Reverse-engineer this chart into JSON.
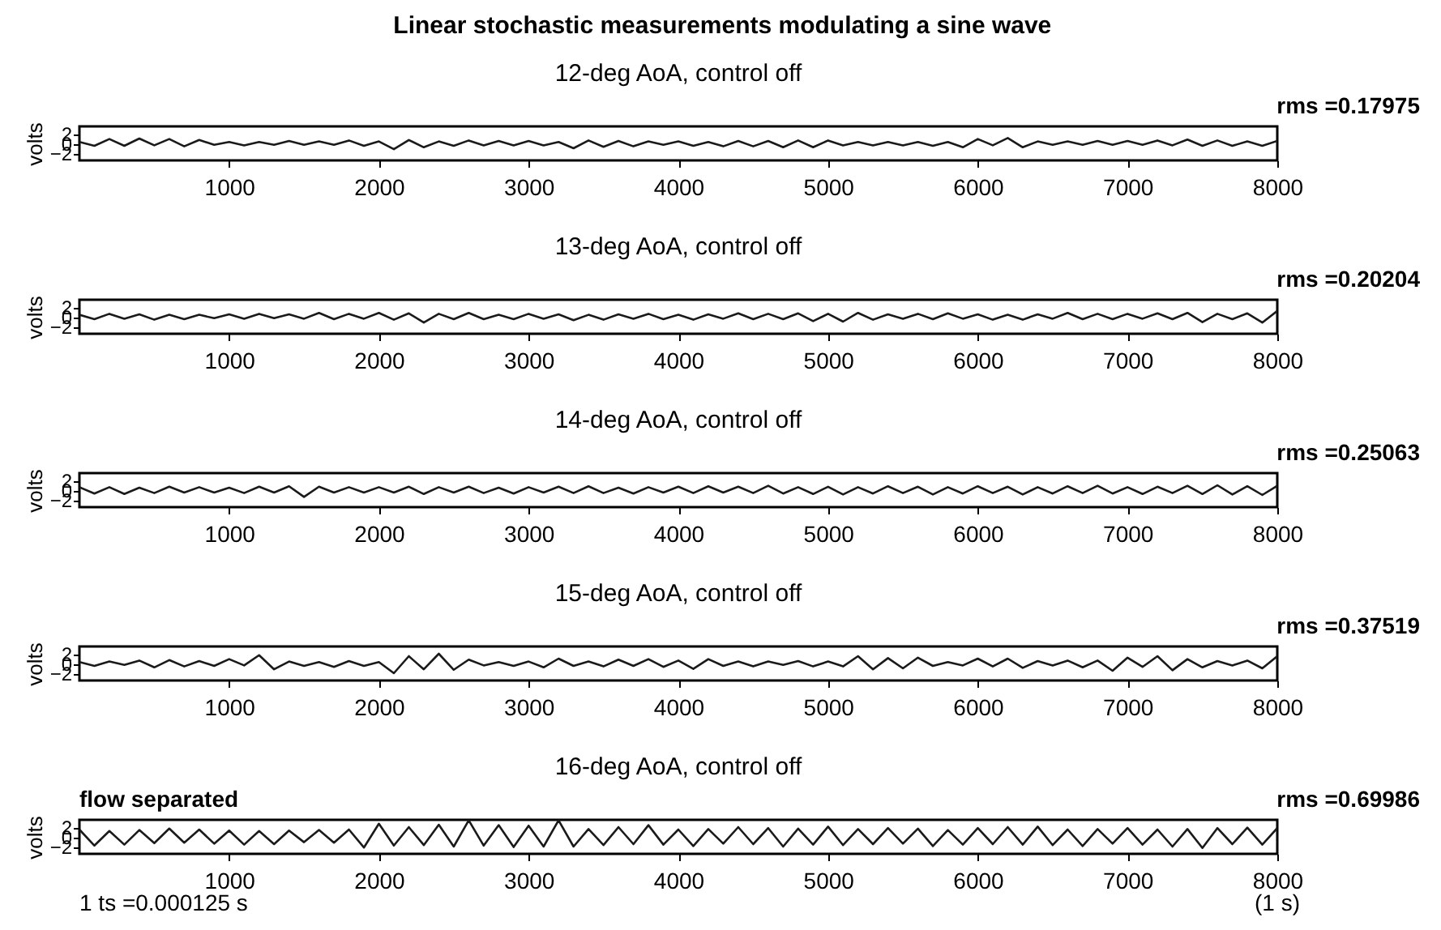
{
  "chart_data": [
    {
      "type": "line",
      "title": "Linear stochastic measurements modulating a sine wave",
      "subtitle": "12-deg AoA, control off",
      "ylabel": "volts",
      "annotations": [
        "rms =0.17975"
      ],
      "xlim": [
        0,
        8000
      ],
      "ylim": [
        -3.5,
        3.5
      ],
      "xticks": [
        1000,
        2000,
        3000,
        4000,
        5000,
        6000,
        7000,
        8000
      ],
      "yticks": [
        -2,
        0,
        2
      ],
      "grid": false,
      "x": [
        0,
        100,
        200,
        300,
        400,
        500,
        600,
        700,
        800,
        900,
        1000,
        1100,
        1200,
        1300,
        1400,
        1500,
        1600,
        1700,
        1800,
        1900,
        2000,
        2100,
        2200,
        2300,
        2400,
        2500,
        2600,
        2700,
        2800,
        2900,
        3000,
        3100,
        3200,
        3300,
        3400,
        3500,
        3600,
        3700,
        3800,
        3900,
        4000,
        4100,
        4200,
        4300,
        4400,
        4500,
        4600,
        4700,
        4800,
        4900,
        5000,
        5100,
        5200,
        5300,
        5400,
        5500,
        5600,
        5700,
        5800,
        5900,
        6000,
        6100,
        6200,
        6300,
        6400,
        6500,
        6600,
        6700,
        6800,
        6900,
        7000,
        7100,
        7200,
        7300,
        7400,
        7500,
        7600,
        7700,
        7800,
        7900,
        8000
      ],
      "series": [
        {
          "color": "#1a1a1a",
          "values": [
            0.3,
            -0.5,
            0.9,
            -0.5,
            1.0,
            -0.4,
            0.9,
            -0.6,
            0.7,
            -0.3,
            0.3,
            -0.4,
            0.3,
            -0.3,
            0.5,
            -0.3,
            0.4,
            -0.3,
            0.6,
            -0.5,
            0.4,
            -1.2,
            0.7,
            -0.8,
            0.4,
            -0.5,
            0.6,
            -0.4,
            0.5,
            -0.4,
            0.5,
            -0.4,
            0.3,
            -1.0,
            0.6,
            -0.7,
            0.5,
            -0.6,
            0.4,
            -0.3,
            0.4,
            -0.5,
            0.3,
            -0.6,
            0.5,
            -0.6,
            0.5,
            -0.8,
            0.6,
            -0.8,
            0.6,
            -0.4,
            0.3,
            -0.4,
            0.3,
            -0.4,
            0.3,
            -0.5,
            0.3,
            -0.8,
            0.9,
            -0.4,
            1.1,
            -0.8,
            0.4,
            -0.3,
            0.4,
            -0.3,
            0.5,
            -0.3,
            0.5,
            -0.3,
            0.6,
            -0.4,
            0.8,
            -0.5,
            0.6,
            -0.5,
            0.4,
            -0.5,
            0.5
          ]
        }
      ]
    },
    {
      "type": "line",
      "subtitle": "13-deg AoA, control off",
      "ylabel": "volts",
      "annotations": [
        "rms =0.20204"
      ],
      "xlim": [
        0,
        8000
      ],
      "ylim": [
        -3.5,
        3.5
      ],
      "xticks": [
        1000,
        2000,
        3000,
        4000,
        5000,
        6000,
        7000,
        8000
      ],
      "yticks": [
        -2,
        0,
        2
      ],
      "grid": false,
      "x": [
        0,
        100,
        200,
        300,
        400,
        500,
        600,
        700,
        800,
        900,
        1000,
        1100,
        1200,
        1300,
        1400,
        1500,
        1600,
        1700,
        1800,
        1900,
        2000,
        2100,
        2200,
        2300,
        2400,
        2500,
        2600,
        2700,
        2800,
        2900,
        3000,
        3100,
        3200,
        3300,
        3400,
        3500,
        3600,
        3700,
        3800,
        3900,
        4000,
        4100,
        4200,
        4300,
        4400,
        4500,
        4600,
        4700,
        4800,
        4900,
        5000,
        5100,
        5200,
        5300,
        5400,
        5500,
        5600,
        5700,
        5800,
        5900,
        6000,
        6100,
        6200,
        6300,
        6400,
        6500,
        6600,
        6700,
        6800,
        6900,
        7000,
        7100,
        7200,
        7300,
        7400,
        7500,
        7600,
        7700,
        7800,
        7900,
        8000
      ],
      "series": [
        {
          "color": "#1a1a1a",
          "values": [
            0.4,
            -0.5,
            0.6,
            -0.4,
            0.5,
            -0.6,
            0.4,
            -0.5,
            0.4,
            -0.3,
            0.5,
            -0.4,
            0.6,
            -0.3,
            0.5,
            -0.4,
            0.8,
            -0.5,
            0.6,
            -0.4,
            0.8,
            -0.6,
            0.7,
            -1.2,
            0.6,
            -0.5,
            0.8,
            -0.5,
            0.4,
            -0.5,
            0.6,
            -0.4,
            0.5,
            -0.7,
            0.4,
            -0.6,
            0.5,
            -0.4,
            0.6,
            -0.5,
            0.4,
            -0.6,
            0.5,
            -0.4,
            0.7,
            -0.5,
            0.6,
            -0.5,
            0.7,
            -0.9,
            0.6,
            -1.0,
            0.8,
            -0.6,
            0.5,
            -0.4,
            0.6,
            -0.5,
            0.7,
            -0.4,
            0.5,
            -0.6,
            0.4,
            -0.6,
            0.5,
            -0.4,
            0.8,
            -0.5,
            0.6,
            -0.5,
            0.6,
            -0.4,
            0.7,
            -0.5,
            0.8,
            -1.1,
            0.6,
            -0.5,
            0.7,
            -1.2,
            1.2
          ]
        }
      ]
    },
    {
      "type": "line",
      "subtitle": "14-deg AoA, control off",
      "ylabel": "volts",
      "annotations": [
        "rms =0.25063"
      ],
      "xlim": [
        0,
        8000
      ],
      "ylim": [
        -3.5,
        3.5
      ],
      "xticks": [
        1000,
        2000,
        3000,
        4000,
        5000,
        6000,
        7000,
        8000
      ],
      "yticks": [
        -2,
        0,
        2
      ],
      "grid": false,
      "x": [
        0,
        100,
        200,
        300,
        400,
        500,
        600,
        700,
        800,
        900,
        1000,
        1100,
        1200,
        1300,
        1400,
        1500,
        1600,
        1700,
        1800,
        1900,
        2000,
        2100,
        2200,
        2300,
        2400,
        2500,
        2600,
        2700,
        2800,
        2900,
        3000,
        3100,
        3200,
        3300,
        3400,
        3500,
        3600,
        3700,
        3800,
        3900,
        4000,
        4100,
        4200,
        4300,
        4400,
        4500,
        4600,
        4700,
        4800,
        4900,
        5000,
        5100,
        5200,
        5300,
        5400,
        5500,
        5600,
        5700,
        5800,
        5900,
        6000,
        6100,
        6200,
        6300,
        6400,
        6500,
        6600,
        6700,
        6800,
        6900,
        7000,
        7100,
        7200,
        7300,
        7400,
        7500,
        7600,
        7700,
        7800,
        7900,
        8000
      ],
      "series": [
        {
          "color": "#1a1a1a",
          "values": [
            0.6,
            -0.7,
            0.6,
            -0.8,
            0.5,
            -0.6,
            0.7,
            -0.5,
            0.6,
            -0.5,
            0.5,
            -0.6,
            0.7,
            -0.5,
            0.8,
            -1.4,
            0.7,
            -0.5,
            0.6,
            -0.5,
            0.6,
            -0.5,
            0.7,
            -0.8,
            0.6,
            -0.5,
            0.7,
            -0.6,
            0.5,
            -0.7,
            0.6,
            -0.5,
            0.7,
            -0.6,
            0.8,
            -0.6,
            0.5,
            -0.7,
            0.6,
            -0.5,
            0.7,
            -0.6,
            0.8,
            -0.5,
            0.7,
            -0.6,
            0.9,
            -0.7,
            0.6,
            -0.8,
            0.7,
            -0.9,
            0.6,
            -0.7,
            0.8,
            -0.6,
            0.7,
            -0.9,
            0.6,
            -0.7,
            0.8,
            -0.6,
            0.7,
            -0.9,
            0.6,
            -0.7,
            0.8,
            -0.6,
            0.9,
            -0.7,
            0.6,
            -0.8,
            0.7,
            -0.6,
            0.9,
            -0.8,
            1.0,
            -0.9,
            0.8,
            -1.0,
            0.9
          ]
        }
      ]
    },
    {
      "type": "line",
      "subtitle": "15-deg AoA, control off",
      "ylabel": "volts",
      "annotations": [
        "rms =0.37519"
      ],
      "xlim": [
        0,
        8000
      ],
      "ylim": [
        -3.5,
        3.5
      ],
      "xticks": [
        1000,
        2000,
        3000,
        4000,
        5000,
        6000,
        7000,
        8000
      ],
      "yticks": [
        -2,
        0,
        2
      ],
      "grid": false,
      "x": [
        0,
        100,
        200,
        300,
        400,
        500,
        600,
        700,
        800,
        900,
        1000,
        1100,
        1200,
        1300,
        1400,
        1500,
        1600,
        1700,
        1800,
        1900,
        2000,
        2100,
        2200,
        2300,
        2400,
        2500,
        2600,
        2700,
        2800,
        2900,
        3000,
        3100,
        3200,
        3300,
        3400,
        3500,
        3600,
        3700,
        3800,
        3900,
        4000,
        4100,
        4200,
        4300,
        4400,
        4500,
        4600,
        4700,
        4800,
        4900,
        5000,
        5100,
        5200,
        5300,
        5400,
        5500,
        5600,
        5700,
        5800,
        5900,
        6000,
        6100,
        6200,
        6300,
        6400,
        6500,
        6600,
        6700,
        6800,
        6900,
        7000,
        7100,
        7200,
        7300,
        7400,
        7500,
        7600,
        7700,
        7800,
        7900,
        8000
      ],
      "series": [
        {
          "color": "#1a1a1a",
          "values": [
            0.3,
            -0.5,
            0.4,
            -0.3,
            0.6,
            -0.8,
            0.7,
            -0.6,
            0.5,
            -0.5,
            0.9,
            -0.4,
            1.7,
            -1.2,
            0.4,
            -0.5,
            0.3,
            -0.7,
            0.5,
            -0.5,
            0.3,
            -2.0,
            1.5,
            -1.2,
            2.0,
            -1.3,
            0.8,
            -0.4,
            0.3,
            -0.5,
            0.4,
            -0.8,
            1.0,
            -0.5,
            0.4,
            -0.6,
            0.8,
            -0.5,
            0.9,
            -0.7,
            0.6,
            -1.1,
            0.9,
            -0.5,
            0.4,
            -0.6,
            0.4,
            -0.3,
            0.5,
            -0.6,
            0.4,
            -0.6,
            1.5,
            -1.2,
            1.1,
            -1.0,
            1.2,
            -0.5,
            0.3,
            -0.4,
            1.0,
            -0.6,
            1.0,
            -0.9,
            0.5,
            -0.4,
            0.6,
            -0.8,
            0.6,
            -1.5,
            1.2,
            -0.7,
            1.5,
            -1.4,
            0.9,
            -0.8,
            0.5,
            -0.4,
            0.6,
            -1.0,
            1.5
          ]
        }
      ]
    },
    {
      "type": "line",
      "subtitle": "16-deg AoA, control off",
      "ylabel": "volts",
      "annotations": [
        "rms =0.69986",
        "flow separated",
        "1 ts =0.000125 s",
        "(1 s)"
      ],
      "xlim": [
        0,
        8000
      ],
      "ylim": [
        -3.5,
        3.5
      ],
      "xticks": [
        1000,
        2000,
        3000,
        4000,
        5000,
        6000,
        7000,
        8000
      ],
      "yticks": [
        -2,
        0,
        2
      ],
      "grid": false,
      "x": [
        0,
        100,
        200,
        300,
        400,
        500,
        600,
        700,
        800,
        900,
        1000,
        1100,
        1200,
        1300,
        1400,
        1500,
        1600,
        1700,
        1800,
        1900,
        2000,
        2100,
        2200,
        2300,
        2400,
        2500,
        2600,
        2700,
        2800,
        2900,
        3000,
        3100,
        3200,
        3300,
        3400,
        3500,
        3600,
        3700,
        3800,
        3900,
        4000,
        4100,
        4200,
        4300,
        4400,
        4500,
        4600,
        4700,
        4800,
        4900,
        5000,
        5100,
        5200,
        5300,
        5400,
        5500,
        5600,
        5700,
        5800,
        5900,
        6000,
        6100,
        6200,
        6300,
        6400,
        6500,
        6600,
        6700,
        6800,
        6900,
        7000,
        7100,
        7200,
        7300,
        7400,
        7500,
        7600,
        7700,
        7800,
        7900,
        8000
      ],
      "series": [
        {
          "color": "#1a1a1a",
          "values": [
            1.5,
            -1.8,
            1.2,
            -1.6,
            1.4,
            -1.3,
            1.7,
            -1.2,
            1.5,
            -1.4,
            1.3,
            -1.6,
            1.2,
            -1.5,
            1.3,
            -1.1,
            1.4,
            -1.2,
            1.5,
            -2.2,
            2.7,
            -1.8,
            2.0,
            -1.7,
            2.5,
            -2.0,
            3.4,
            -1.8,
            2.4,
            -2.1,
            2.3,
            -2.0,
            3.4,
            -2.0,
            1.6,
            -1.7,
            2.0,
            -1.5,
            2.4,
            -1.6,
            1.5,
            -1.9,
            1.6,
            -1.4,
            2.0,
            -1.5,
            1.8,
            -2.0,
            1.7,
            -1.6,
            2.1,
            -1.7,
            1.6,
            -1.5,
            1.8,
            -1.4,
            1.7,
            -1.9,
            1.4,
            -1.6,
            1.8,
            -1.5,
            2.0,
            -1.6,
            2.1,
            -1.7,
            1.5,
            -1.9,
            1.6,
            -1.4,
            1.8,
            -1.6,
            1.5,
            -2.0,
            1.6,
            -2.3,
            1.8,
            -1.5,
            1.9,
            -1.6,
            1.8
          ]
        }
      ]
    }
  ]
}
